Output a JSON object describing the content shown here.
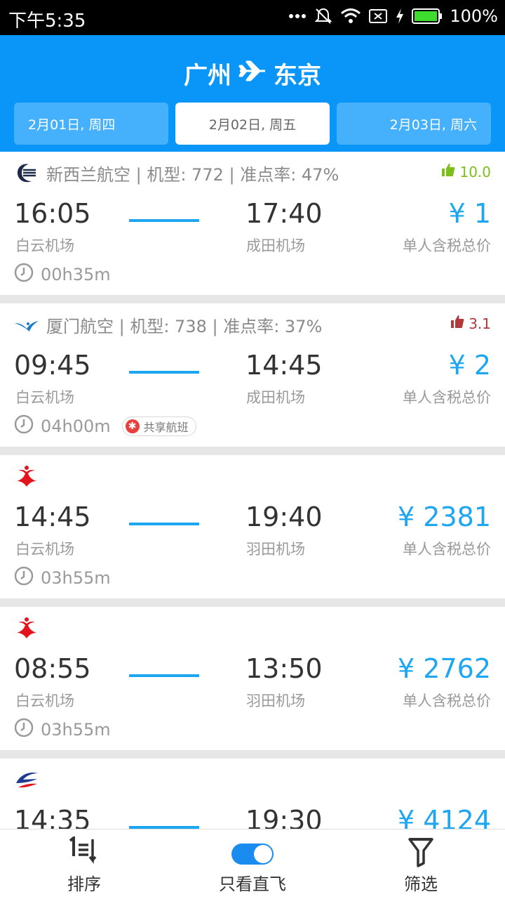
{
  "status_bar": {
    "time": "下午5:35",
    "battery": "100%"
  },
  "header": {
    "origin": "广州",
    "destination": "东京",
    "dates": [
      "2月01日, 周四",
      "2月02日, 周五",
      "2月03日, 周六"
    ],
    "selected_date_index": 1
  },
  "flights": [
    {
      "airline_info": "新西兰航空 | 机型: 772 | 准点率: 47%",
      "logo": "air-new-zealand-logo",
      "rating": "10.0",
      "rating_type": "up",
      "rating_color": "#7cbf1d",
      "dep_time": "16:05",
      "dep_airport": "白云机场",
      "arr_time": "17:40",
      "arr_airport": "成田机场",
      "price": "¥ 1",
      "price_label": "单人含税总价",
      "duration": "00h35m",
      "badge": ""
    },
    {
      "airline_info": "厦门航空 | 机型: 738 | 准点率: 37%",
      "logo": "xiamen-airlines-logo",
      "rating": "3.1",
      "rating_type": "down",
      "rating_color": "#b0393b",
      "dep_time": "09:45",
      "dep_airport": "白云机场",
      "arr_time": "14:45",
      "arr_airport": "成田机场",
      "price": "¥ 2",
      "price_label": "单人含税总价",
      "duration": "04h00m",
      "badge": "共享航班"
    },
    {
      "airline_info": "",
      "logo": "china-southern-logo",
      "rating": "",
      "rating_type": "",
      "rating_color": "",
      "dep_time": "14:45",
      "dep_airport": "白云机场",
      "arr_time": "19:40",
      "arr_airport": "羽田机场",
      "price": "¥ 2381",
      "price_label": "单人含税总价",
      "duration": "03h55m",
      "badge": ""
    },
    {
      "airline_info": "",
      "logo": "china-southern-logo",
      "rating": "",
      "rating_type": "",
      "rating_color": "",
      "dep_time": "08:55",
      "dep_airport": "白云机场",
      "arr_time": "13:50",
      "arr_airport": "羽田机场",
      "price": "¥ 2762",
      "price_label": "单人含税总价",
      "duration": "03h55m",
      "badge": ""
    },
    {
      "airline_info": "",
      "logo": "china-eastern-logo",
      "rating": "",
      "rating_type": "",
      "rating_color": "",
      "dep_time": "14:35",
      "dep_airport": "",
      "arr_time": "19:30",
      "arr_airport": "",
      "price": "¥ 4124",
      "price_label": "",
      "duration": "",
      "badge": ""
    }
  ],
  "bottom_bar": {
    "sort_label": "排序",
    "direct_label": "只看直飞",
    "direct_enabled": true,
    "filter_label": "筛选"
  },
  "colors": {
    "header_bg": "#0a96f8",
    "accent": "#1fa6f1",
    "text_dark": "#333333",
    "text_muted": "#9a9a9a"
  }
}
